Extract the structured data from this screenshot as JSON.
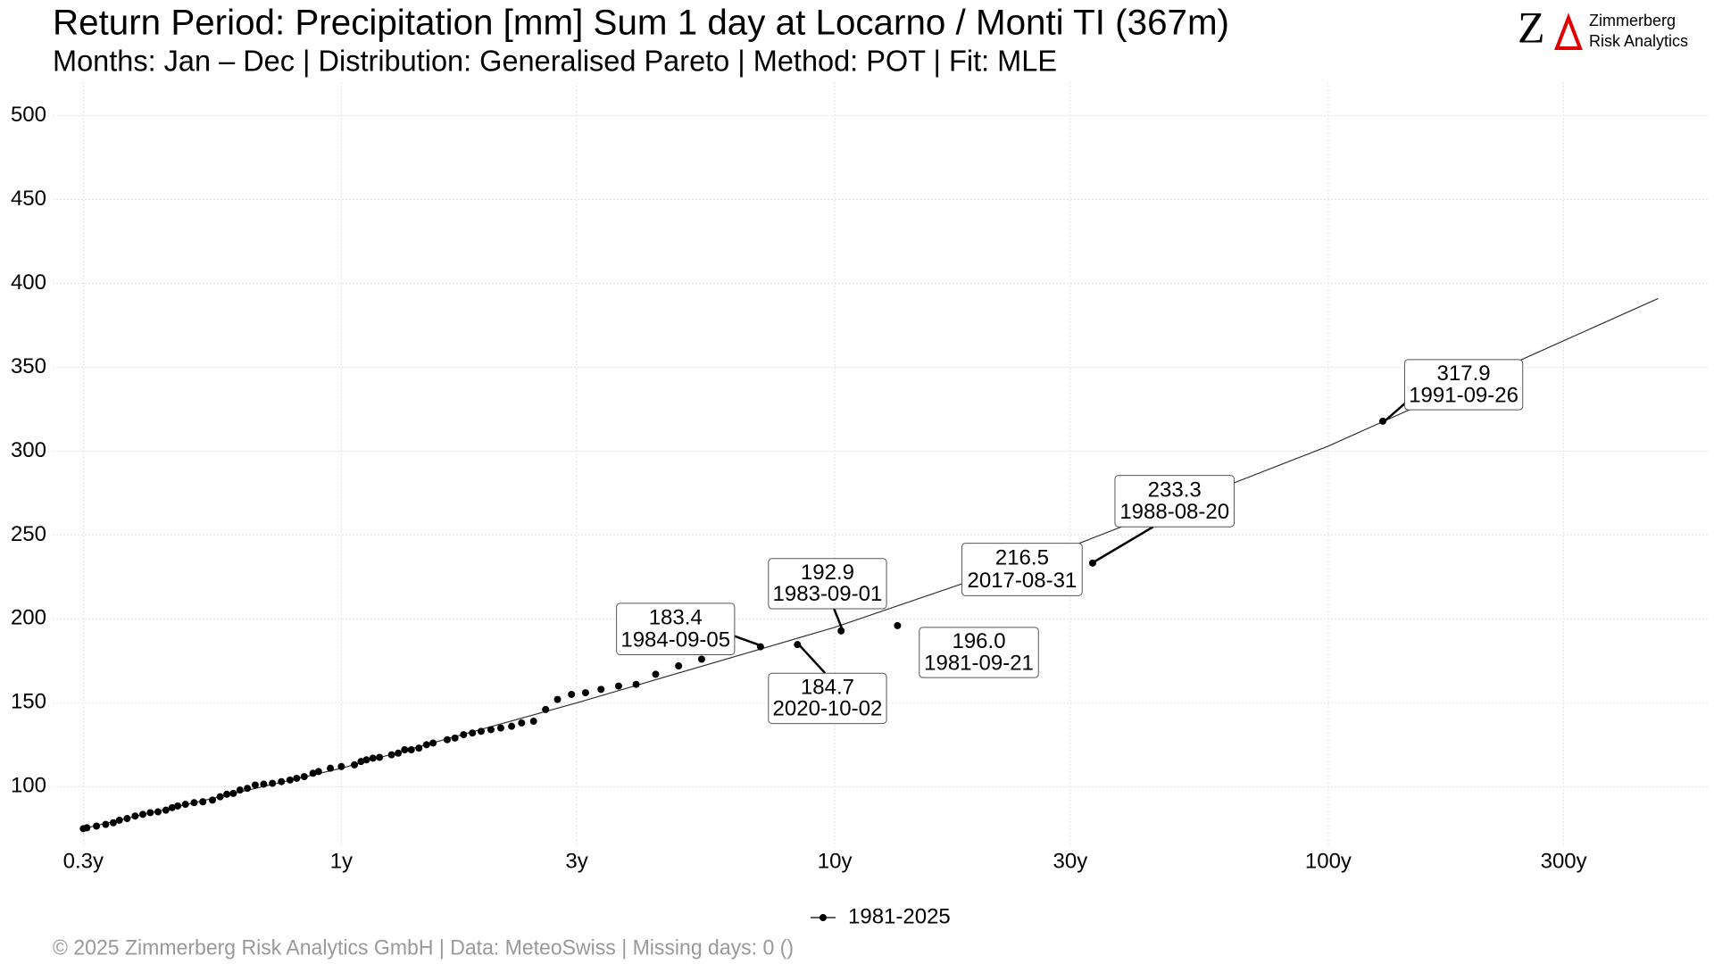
{
  "chart_data": {
    "type": "scatter",
    "title": "Return Period: Precipitation [mm] Sum 1 day at Locarno / Monti  TI (367m)",
    "subtitle": "Months: Jan – Dec | Distribution: Generalised Pareto | Method: POT | Fit: MLE",
    "logo": {
      "letter": "Z",
      "line1": "Zimmerberg",
      "line2": "Risk Analytics"
    },
    "footer": "©  2025 Zimmerberg Risk Analytics GmbH | Data: MeteoSwiss | Missing days: 0 ()",
    "xscale": "log",
    "grid": true,
    "legend": "bottom",
    "xlim": [
      0.26,
      590
    ],
    "xticks": [
      {
        "value": 0.3,
        "label": "0.3y"
      },
      {
        "value": 1,
        "label": "1y"
      },
      {
        "value": 3,
        "label": "3y"
      },
      {
        "value": 10,
        "label": "10y"
      },
      {
        "value": 30,
        "label": "30y"
      },
      {
        "value": 100,
        "label": "100y"
      },
      {
        "value": 300,
        "label": "300y"
      }
    ],
    "ylim": [
      64,
      520
    ],
    "yticks": [
      100,
      150,
      200,
      250,
      300,
      350,
      400,
      450,
      500
    ],
    "series": [
      {
        "name": "1981-2025",
        "color": "#000000",
        "x": [
          0.3,
          0.305,
          0.319,
          0.333,
          0.345,
          0.355,
          0.368,
          0.382,
          0.396,
          0.41,
          0.425,
          0.441,
          0.454,
          0.466,
          0.483,
          0.503,
          0.524,
          0.548,
          0.568,
          0.586,
          0.604,
          0.623,
          0.645,
          0.669,
          0.696,
          0.725,
          0.756,
          0.787,
          0.812,
          0.841,
          0.876,
          0.899,
          0.95,
          1.0,
          1.063,
          1.096,
          1.124,
          1.159,
          1.195,
          1.264,
          1.304,
          1.344,
          1.386,
          1.436,
          1.488,
          1.534,
          1.639,
          1.699,
          1.769,
          1.843,
          1.92,
          2.01,
          2.104,
          2.213,
          2.319,
          2.452,
          2.594,
          2.742,
          2.927,
          3.125,
          3.359,
          3.646,
          3.957,
          4.335,
          4.824,
          5.371,
          7.07,
          8.4,
          10.3,
          13.4,
          24.4,
          33.3,
          129
        ],
        "values": [
          75,
          75.5,
          76.5,
          77.5,
          78.5,
          80,
          81,
          82.5,
          83.5,
          84.5,
          85,
          86,
          87.5,
          88.5,
          89.5,
          90.5,
          91,
          92,
          94,
          95.5,
          96,
          98,
          99,
          101,
          101.5,
          102,
          103,
          104,
          105,
          106,
          108,
          109,
          111,
          112,
          113,
          115,
          116,
          117,
          117.5,
          119,
          120,
          122,
          122,
          123,
          125,
          126,
          128,
          129,
          131,
          132,
          133,
          134,
          135,
          136,
          138,
          139,
          146,
          152,
          155,
          156,
          158,
          160,
          161,
          167,
          172,
          176,
          183.4,
          184.7,
          192.9,
          196,
          216.5,
          233.3,
          317.9
        ]
      }
    ],
    "fit": {
      "color": "#333333",
      "x": [
        0.3,
        1,
        3,
        10,
        30,
        100,
        466
      ],
      "values": [
        75,
        111,
        150,
        195,
        243,
        303,
        391
      ]
    },
    "annotations": [
      {
        "label": "317.9",
        "date": "1991-09-26"
      },
      {
        "label": "233.3",
        "date": "1988-08-20"
      },
      {
        "label": "216.5",
        "date": "2017-08-31"
      },
      {
        "label": "192.9",
        "date": "1983-09-01"
      },
      {
        "label": "183.4",
        "date": "1984-09-05"
      },
      {
        "label": "184.7",
        "date": "2020-10-02"
      },
      {
        "label": "196.0",
        "date": "1981-09-21"
      }
    ]
  }
}
